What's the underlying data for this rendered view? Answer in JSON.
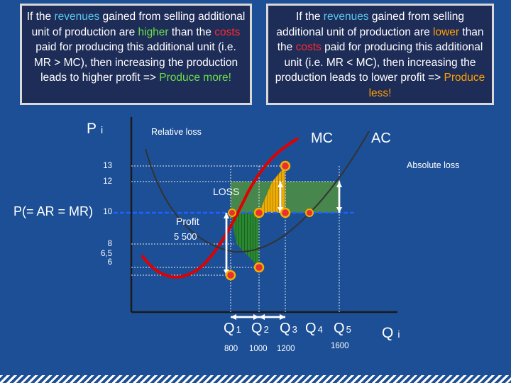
{
  "colors": {
    "background": "#1c4f96",
    "box_bg": "#1e2c58",
    "mc_curve": "#e00000",
    "ac_curve": "#333333",
    "price_line": "#2060ff",
    "profit_fill": "#1a7a1a",
    "loss_fill": "#4a8a3a",
    "point_fill": "#e83030",
    "point_ring": "#f0b000",
    "highlight_bar": "#f0b000"
  },
  "boxes": {
    "left": {
      "pre": "If the ",
      "w_revenues": "revenues",
      "mid1": " gained from selling additional unit of production are ",
      "w_cmp": "higher",
      "mid2": " than the ",
      "w_costs": "costs",
      "mid3": " paid for producing this additional unit (i.e. MR > MC), then increasing the production leads to higher profit => ",
      "w_action": "Produce more!"
    },
    "right": {
      "pre": "If the ",
      "w_revenues": "revenues",
      "mid1": " gained from selling additional unit of production are ",
      "w_cmp": "lower",
      "mid2": " than the ",
      "w_costs": "costs",
      "mid3": " paid for producing this additional unit (i.e. MR < MC), then increasing the production leads to lower profit => ",
      "w_action": "Produce less!"
    }
  },
  "chart_data": {
    "type": "line",
    "y_axis_label": "P",
    "y_axis_sub": "i",
    "x_axis_label": "Q",
    "x_axis_sub": "i",
    "price_label": "P(= AR = MR)",
    "price_value": 10,
    "y_ticks": [
      {
        "label": "13",
        "value": 13
      },
      {
        "label": "12",
        "value": 12
      },
      {
        "label": "10",
        "value": 10
      },
      {
        "label": "8",
        "value": 8
      },
      {
        "label": "6,5",
        "value": 6.5
      },
      {
        "label": "6",
        "value": 6
      }
    ],
    "q_labels": [
      {
        "main": "Q",
        "sub": "1"
      },
      {
        "main": "Q",
        "sub": "2"
      },
      {
        "main": "Q",
        "sub": "3"
      },
      {
        "main": "Q",
        "sub": "4"
      },
      {
        "main": "Q",
        "sub": "5"
      }
    ],
    "x_values": [
      "800",
      "1000",
      "1200",
      "1600"
    ],
    "series": [
      {
        "name": "MC",
        "type": "curve"
      },
      {
        "name": "AC",
        "type": "curve"
      }
    ],
    "points": [
      {
        "q": 800,
        "p": 6
      },
      {
        "q": 1000,
        "p": 6.5
      },
      {
        "q": 1000,
        "p": 10
      },
      {
        "q": 1200,
        "p": 13
      },
      {
        "q": 1200,
        "p": 10
      }
    ],
    "annotations": {
      "relative_loss": "Relative loss",
      "absolute_loss": "Absolute loss",
      "loss": "LOSS",
      "profit": "Profit",
      "profit_value": "5 500"
    }
  }
}
